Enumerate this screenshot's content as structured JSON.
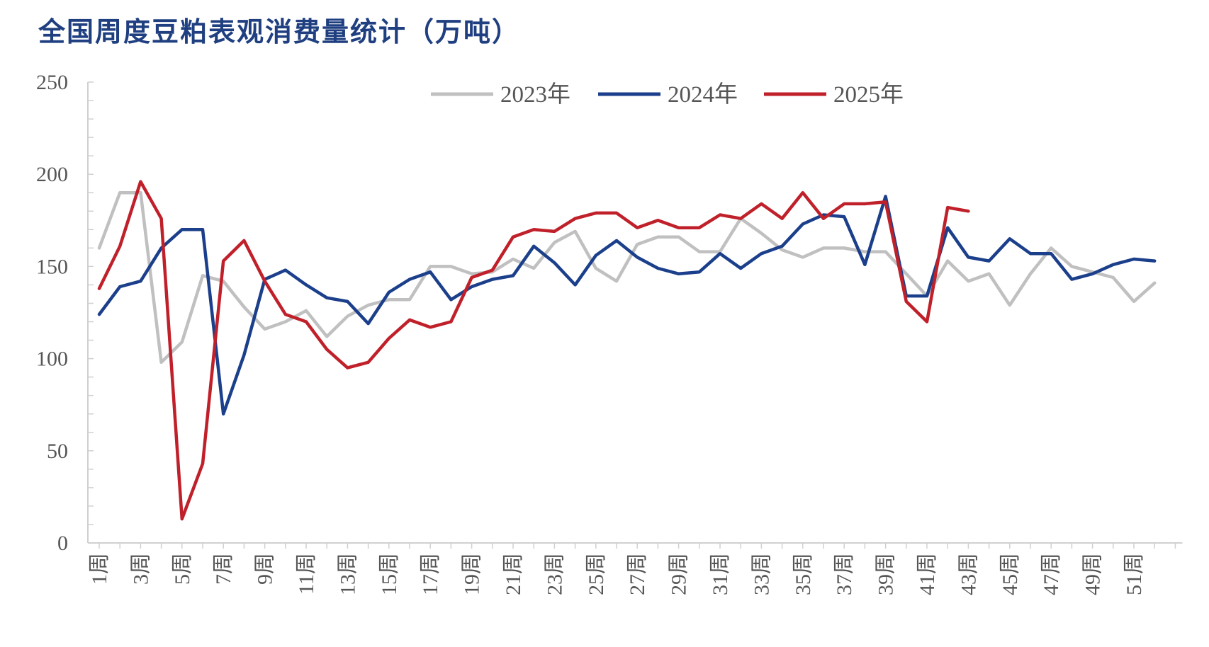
{
  "title": "全国周度豆粕表观消费量统计（万吨）",
  "chart_data": {
    "type": "line",
    "title": "全国周度豆粕表观消费量统计（万吨）",
    "ylim": [
      0,
      250
    ],
    "yticks": [
      0,
      50,
      100,
      150,
      200,
      250
    ],
    "x": [
      1,
      2,
      3,
      4,
      5,
      6,
      7,
      8,
      9,
      10,
      11,
      12,
      13,
      14,
      15,
      16,
      17,
      18,
      19,
      20,
      21,
      22,
      23,
      24,
      25,
      26,
      27,
      28,
      29,
      30,
      31,
      32,
      33,
      34,
      35,
      36,
      37,
      38,
      39,
      40,
      41,
      42,
      43,
      44,
      45,
      46,
      47,
      48,
      49,
      50,
      51,
      52,
      53
    ],
    "xtick_labels": [
      "1周",
      "3周",
      "5周",
      "7周",
      "9周",
      "11周",
      "13周",
      "15周",
      "17周",
      "19周",
      "21周",
      "23周",
      "25周",
      "27周",
      "29周",
      "31周",
      "33周",
      "35周",
      "37周",
      "39周",
      "41周",
      "43周",
      "45周",
      "47周",
      "49周",
      "51周"
    ],
    "legend_position": "top",
    "grid": false,
    "series": [
      {
        "name": "2023年",
        "color": "#c0c0c0",
        "values": [
          160,
          190,
          190,
          98,
          109,
          145,
          142,
          128,
          116,
          120,
          126,
          112,
          123,
          129,
          132,
          132,
          150,
          150,
          146,
          147,
          154,
          149,
          163,
          169,
          149,
          142,
          162,
          166,
          166,
          158,
          158,
          176,
          168,
          159,
          155,
          160,
          160,
          158,
          158,
          146,
          134,
          153,
          142,
          146,
          129,
          146,
          160,
          150,
          147,
          144,
          131,
          141,
          null
        ]
      },
      {
        "name": "2024年",
        "color": "#1b3f8b",
        "values": [
          124,
          139,
          142,
          160,
          170,
          170,
          70,
          102,
          143,
          148,
          140,
          133,
          131,
          119,
          136,
          143,
          147,
          132,
          139,
          143,
          145,
          161,
          152,
          140,
          156,
          164,
          155,
          149,
          146,
          147,
          157,
          149,
          157,
          161,
          173,
          178,
          177,
          151,
          188,
          134,
          134,
          171,
          155,
          153,
          165,
          157,
          157,
          143,
          146,
          151,
          154,
          153,
          null
        ]
      },
      {
        "name": "2025年",
        "color": "#c0202a",
        "values": [
          138,
          161,
          196,
          176,
          13,
          43,
          153,
          164,
          142,
          124,
          120,
          105,
          95,
          98,
          111,
          121,
          117,
          120,
          144,
          148,
          166,
          170,
          169,
          176,
          179,
          179,
          171,
          175,
          171,
          171,
          178,
          176,
          184,
          176,
          190,
          176,
          184,
          184,
          185,
          131,
          120,
          182,
          180,
          null,
          null,
          null,
          null,
          null,
          null,
          null,
          null,
          null,
          null
        ]
      }
    ]
  }
}
